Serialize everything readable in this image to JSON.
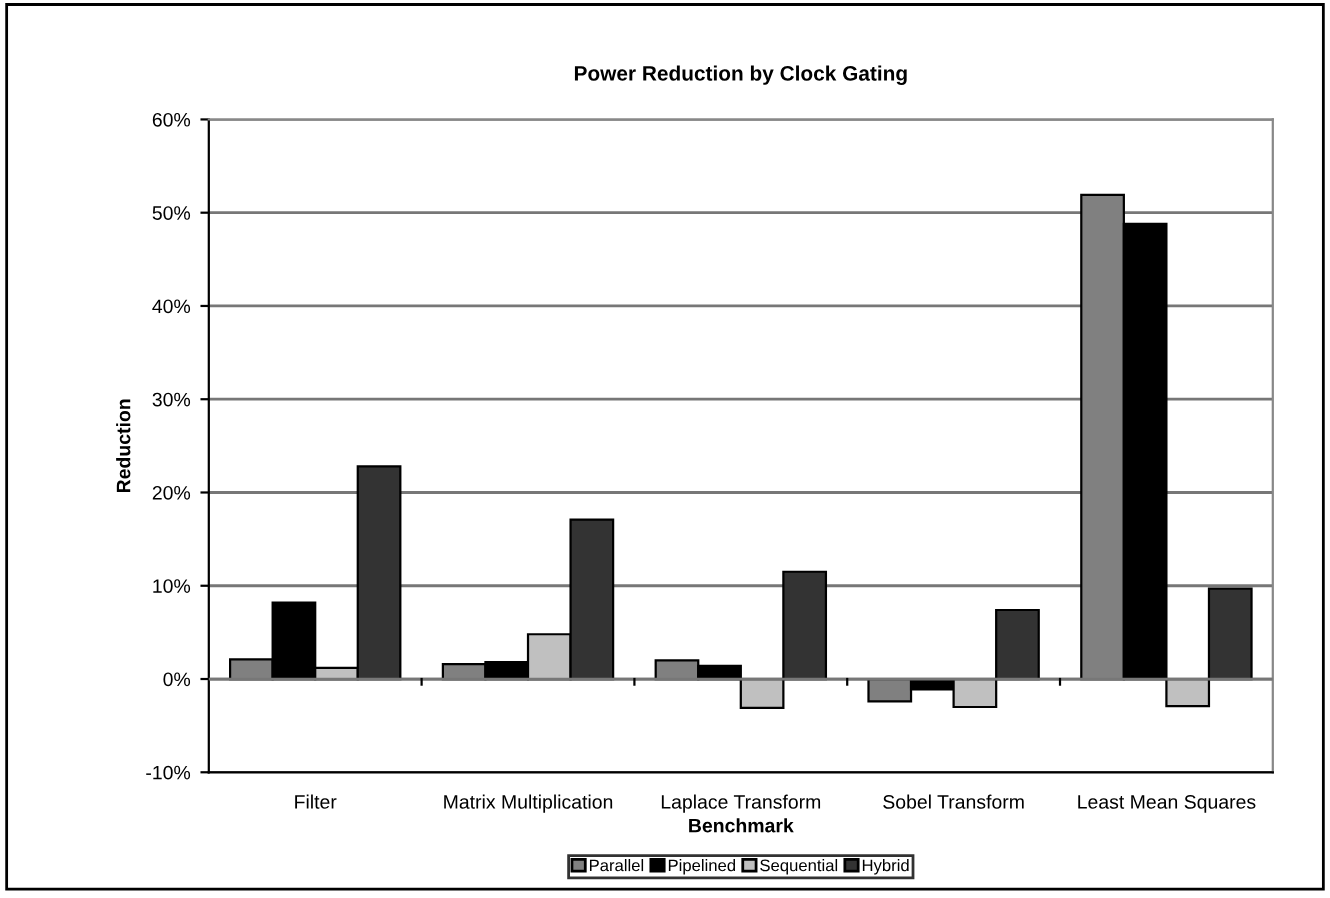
{
  "chart_data": {
    "type": "bar",
    "title": "Power Reduction by Clock Gating",
    "xlabel": "Benchmark",
    "ylabel": "Reduction",
    "categories": [
      "Filter",
      "Matrix Multiplication",
      "Laplace Transform",
      "Sobel Transform",
      "Least Mean Squares"
    ],
    "series": [
      {
        "name": "Parallel",
        "color": "#808080",
        "values": [
          2.1,
          1.6,
          2.0,
          -2.4,
          51.9
        ]
      },
      {
        "name": "Pipelined",
        "color": "#000000",
        "values": [
          8.2,
          1.8,
          1.4,
          -1.1,
          48.8
        ]
      },
      {
        "name": "Sequential",
        "color": "#c0c0c0",
        "values": [
          1.2,
          4.8,
          -3.1,
          -3.0,
          -2.9
        ]
      },
      {
        "name": "Hybrid",
        "color": "#333333",
        "values": [
          22.8,
          17.1,
          11.5,
          7.4,
          9.7
        ]
      }
    ],
    "ylim": [
      -10,
      60
    ],
    "yticks": [
      {
        "value": -10,
        "label": "-10%"
      },
      {
        "value": 0,
        "label": "0%"
      },
      {
        "value": 10,
        "label": "10%"
      },
      {
        "value": 20,
        "label": "20%"
      },
      {
        "value": 30,
        "label": "30%"
      },
      {
        "value": 40,
        "label": "40%"
      },
      {
        "value": 50,
        "label": "50%"
      },
      {
        "value": 60,
        "label": "60%"
      }
    ],
    "grid": "y",
    "legend": "bottom"
  }
}
